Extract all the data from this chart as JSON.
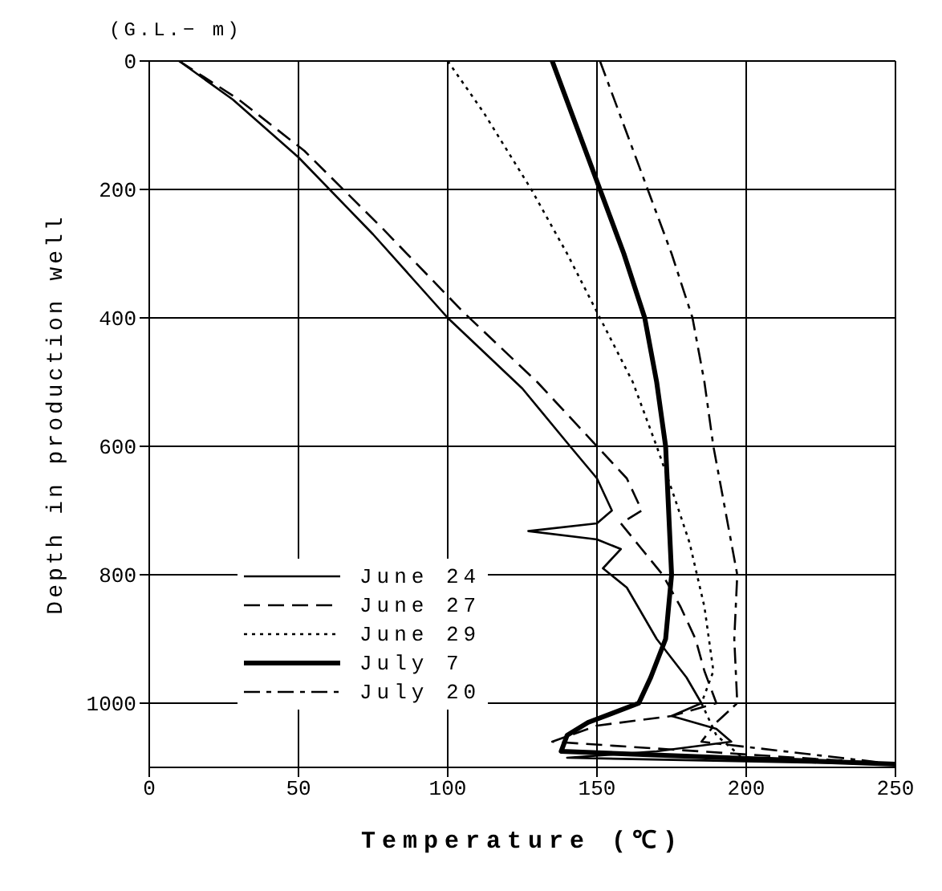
{
  "chart_data": {
    "type": "line",
    "xlabel": "Temperature (℃)",
    "ylabel": "Depth in production well",
    "annotations": [
      "(G.L.− m)"
    ],
    "xlim": [
      0,
      250
    ],
    "xticks": [
      0,
      50,
      100,
      150,
      200,
      250
    ],
    "ylim": [
      1100,
      0
    ],
    "yticks": [
      0,
      200,
      400,
      600,
      800,
      1000
    ],
    "grid": true,
    "legend": "bottom left",
    "marker": "none",
    "series": [
      {
        "name": "June 24",
        "color": "#000000",
        "line_style": "solid",
        "x": [
          10,
          28,
          50,
          75,
          100,
          125,
          141,
          150,
          155,
          150,
          127,
          150,
          158,
          152,
          160,
          165,
          170,
          175,
          180,
          185,
          175,
          190,
          195,
          170,
          140,
          250
        ],
        "values": [
          0,
          60,
          150,
          270,
          400,
          510,
          600,
          650,
          700,
          720,
          732,
          745,
          760,
          790,
          820,
          860,
          900,
          930,
          960,
          1000,
          1020,
          1040,
          1060,
          1075,
          1085,
          1095
        ]
      },
      {
        "name": "June 27",
        "color": "#000000",
        "line_style": "dashed",
        "x": [
          10,
          30,
          52,
          78,
          105,
          130,
          150,
          160,
          165,
          158,
          165,
          172,
          178,
          183,
          186,
          190,
          175,
          150,
          135,
          250
        ],
        "values": [
          0,
          60,
          140,
          260,
          390,
          500,
          600,
          650,
          700,
          720,
          760,
          800,
          850,
          900,
          950,
          1000,
          1020,
          1035,
          1060,
          1095
        ]
      },
      {
        "name": "June 29",
        "color": "#000000",
        "line_style": "dotted",
        "x": [
          100,
          112,
          128,
          140,
          151,
          162,
          170,
          176,
          181,
          186,
          189,
          185,
          190,
          200
        ],
        "values": [
          0,
          80,
          200,
          300,
          400,
          500,
          600,
          680,
          750,
          850,
          950,
          1000,
          1050,
          1090
        ]
      },
      {
        "name": "July 7",
        "color": "#000000",
        "line_style": "solid",
        "x": [
          135,
          143,
          151,
          159,
          166,
          170,
          173,
          174,
          175,
          173,
          168,
          164,
          147,
          140,
          138,
          250
        ],
        "values": [
          0,
          100,
          200,
          300,
          400,
          500,
          600,
          700,
          800,
          900,
          960,
          1000,
          1030,
          1050,
          1075,
          1095
        ]
      },
      {
        "name": "July 20",
        "color": "#000000",
        "line_style": "dashdot",
        "x": [
          151,
          159,
          167,
          175,
          182,
          186,
          189,
          193,
          197,
          196,
          197,
          190,
          185,
          250
        ],
        "values": [
          0,
          100,
          200,
          300,
          400,
          500,
          600,
          700,
          800,
          900,
          1000,
          1030,
          1060,
          1095
        ]
      }
    ]
  }
}
